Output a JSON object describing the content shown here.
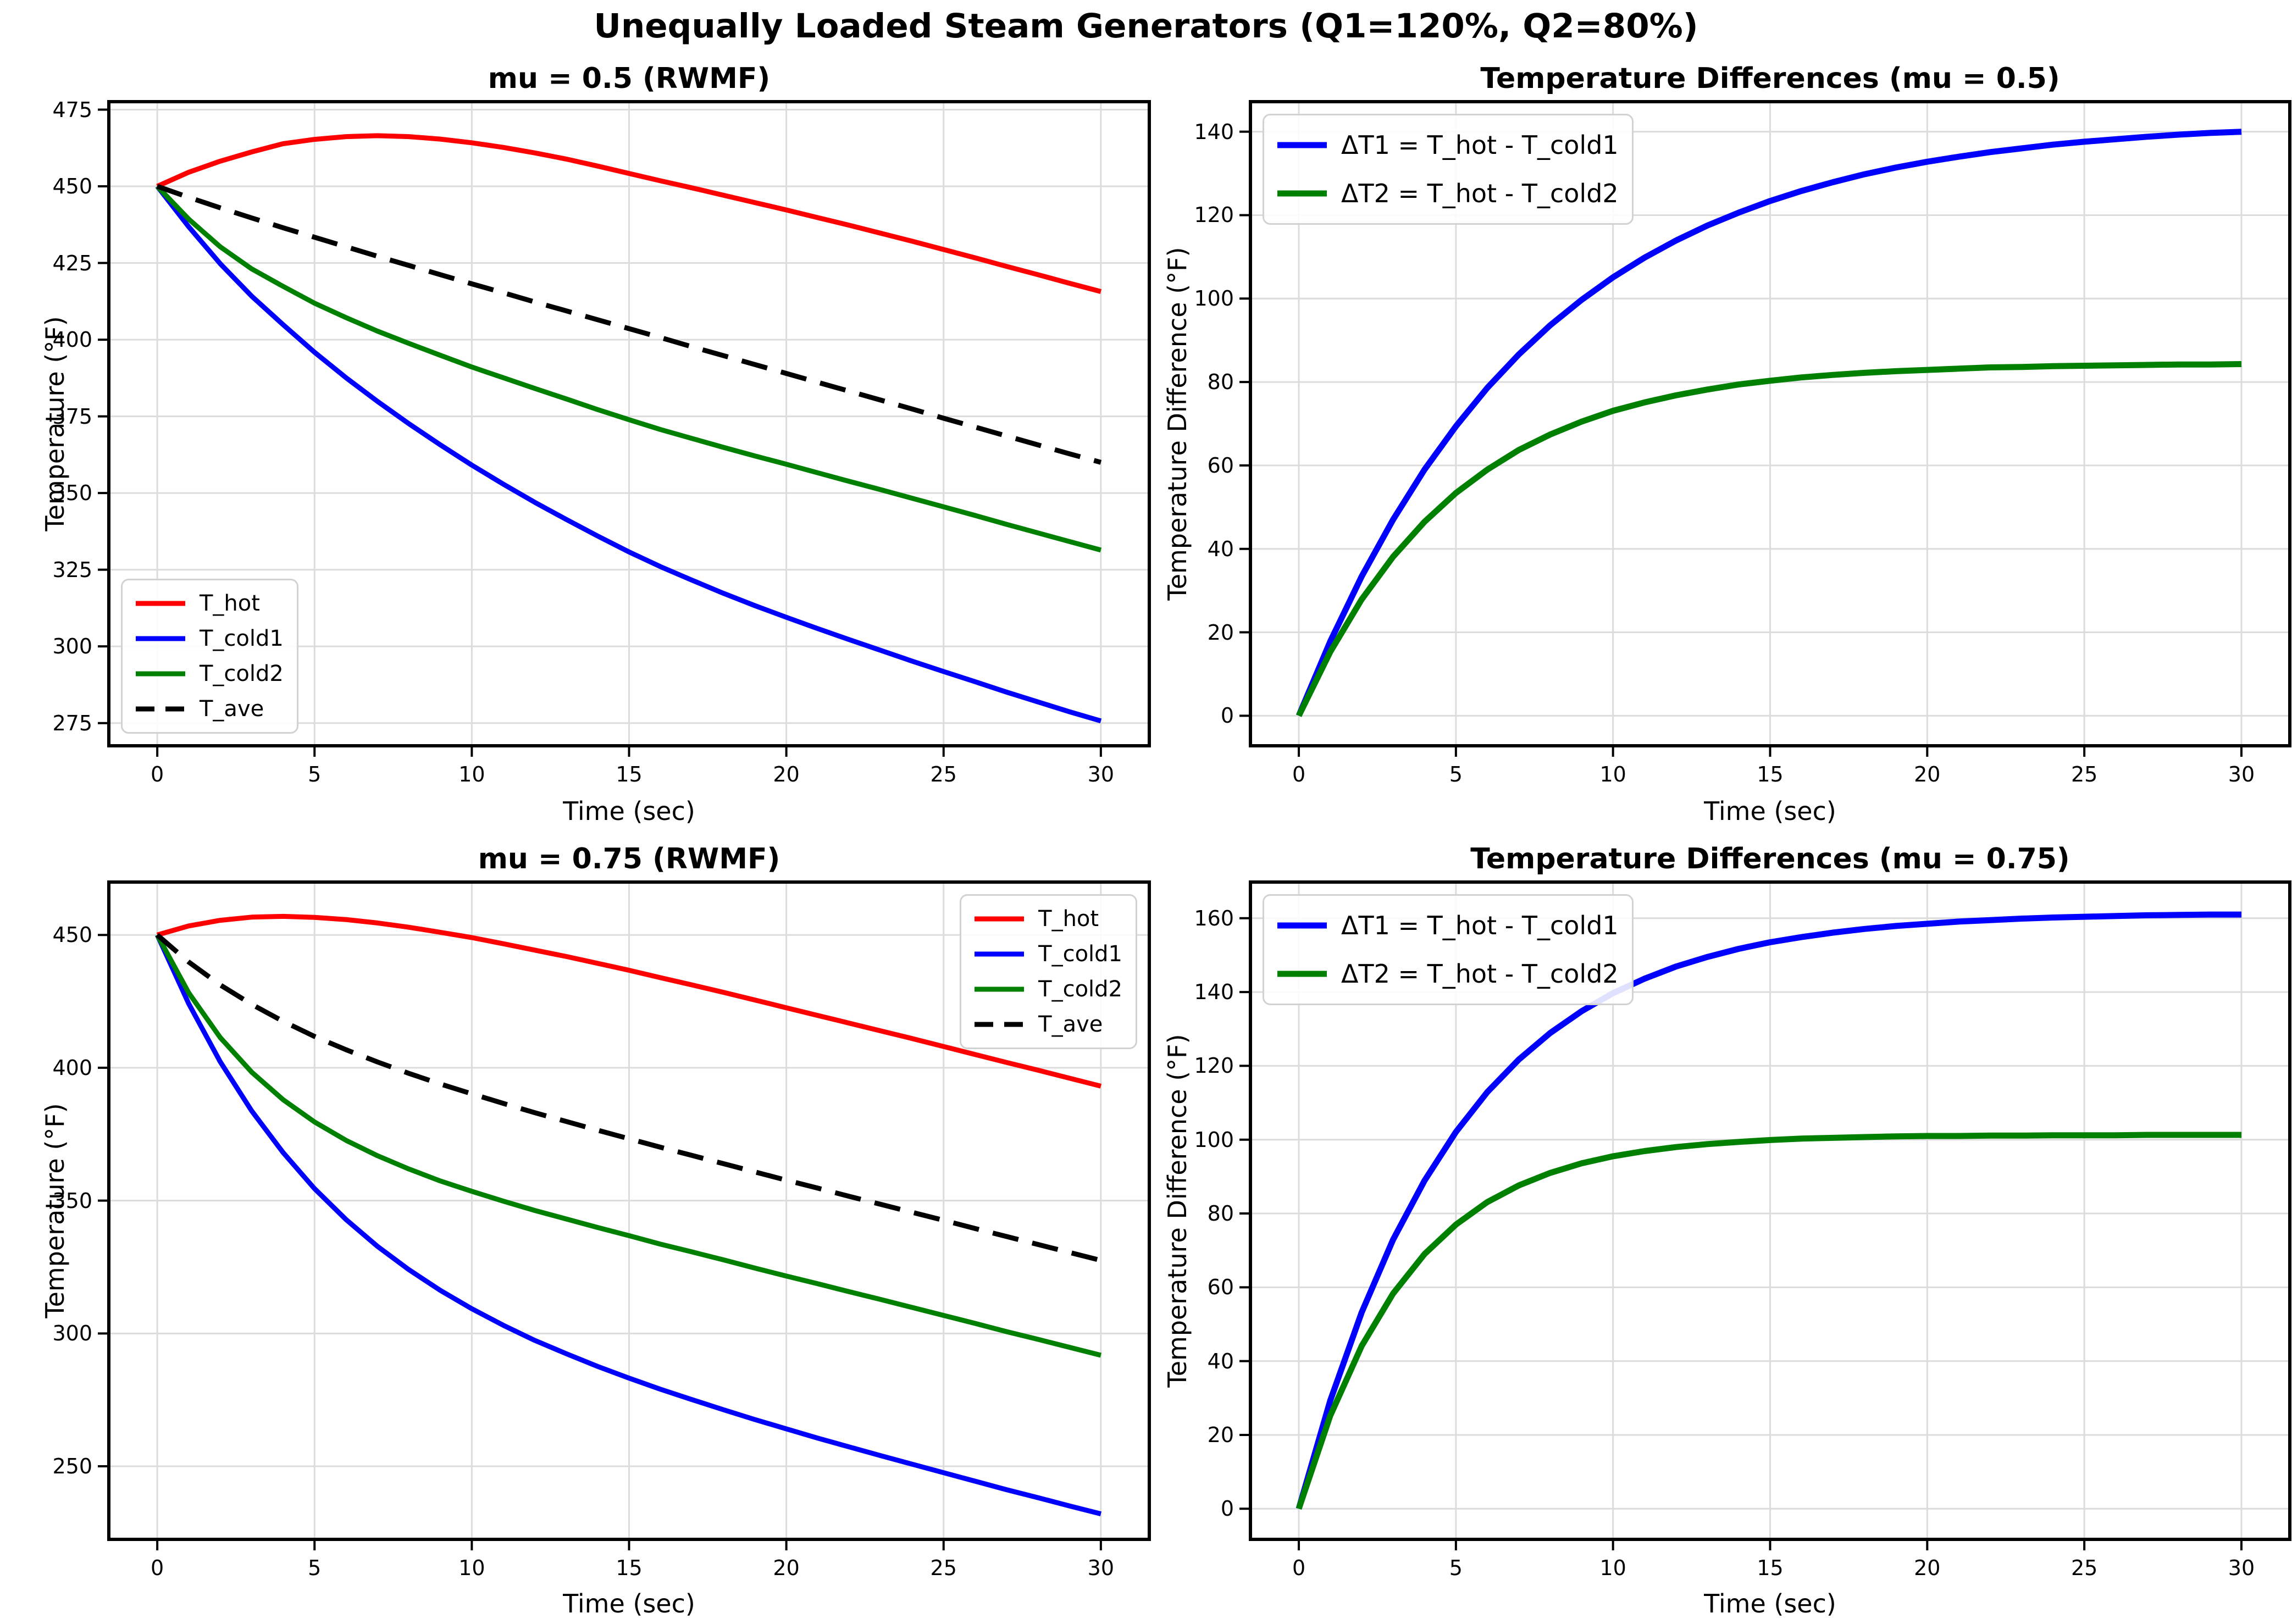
{
  "suptitle": "Unequally Loaded Steam Generators (Q1=120%, Q2=80%)",
  "colors": {
    "hot": "#ff0000",
    "cold1": "#0000ff",
    "cold2": "#008000",
    "ave": "#000000",
    "grid": "#dcdcdc",
    "spine": "#000000",
    "legend_border": "#d2d2d2"
  },
  "chart_data": [
    {
      "type": "line",
      "title": "mu = 0.5 (RWMF)",
      "xlabel": "Time (sec)",
      "ylabel": "Temperature (°F)",
      "xlim": [
        -1.54,
        31.54
      ],
      "ylim": [
        267.6,
        477.6
      ],
      "xticks": [
        0,
        5,
        10,
        15,
        20,
        25,
        30
      ],
      "yticks": [
        275,
        300,
        325,
        350,
        375,
        400,
        425,
        450,
        475
      ],
      "grid": true,
      "legend_loc": "lower-left",
      "x": [
        0,
        1,
        2,
        3,
        4,
        5,
        6,
        7,
        8,
        9,
        10,
        11,
        12,
        13,
        14,
        15,
        16,
        17,
        18,
        19,
        20,
        21,
        22,
        23,
        24,
        25,
        26,
        27,
        28,
        29,
        30
      ],
      "series": [
        {
          "label": "T_hot",
          "color": "#ff0000",
          "dash": false,
          "values": [
            450.0,
            454.6,
            458.2,
            461.2,
            463.9,
            465.3,
            466.2,
            466.5,
            466.2,
            465.4,
            464.2,
            462.7,
            460.9,
            458.9,
            456.6,
            454.2,
            451.8,
            449.5,
            447.1,
            444.7,
            442.3,
            439.8,
            437.3,
            434.7,
            432.1,
            429.4,
            426.7,
            423.9,
            421.2,
            418.4,
            415.7
          ]
        },
        {
          "label": "T_cold1",
          "color": "#0000ff",
          "dash": false,
          "values": [
            450.0,
            436.8,
            424.8,
            414.2,
            404.9,
            395.9,
            387.6,
            379.9,
            372.6,
            365.7,
            359.1,
            352.9,
            347.0,
            341.4,
            336.0,
            330.8,
            326.0,
            321.6,
            317.3,
            313.3,
            309.5,
            305.8,
            302.2,
            298.7,
            295.2,
            291.8,
            288.5,
            285.1,
            281.9,
            278.7,
            275.7
          ]
        },
        {
          "label": "T_cold2",
          "color": "#008000",
          "dash": false,
          "values": [
            450.0,
            439.3,
            430.3,
            423.1,
            417.4,
            411.9,
            407.2,
            402.8,
            398.8,
            394.9,
            391.1,
            387.6,
            384.1,
            380.7,
            377.2,
            373.9,
            370.7,
            367.8,
            364.9,
            362.1,
            359.4,
            356.6,
            353.8,
            351.1,
            348.3,
            345.5,
            342.7,
            339.8,
            337.0,
            334.2,
            331.4
          ]
        },
        {
          "label": "T_ave",
          "color": "#000000",
          "dash": true,
          "values": [
            450.0,
            446.4,
            443.0,
            439.7,
            436.5,
            433.4,
            430.3,
            427.2,
            424.2,
            421.2,
            418.2,
            415.3,
            412.3,
            409.4,
            406.5,
            403.6,
            400.7,
            397.7,
            394.8,
            391.9,
            389.0,
            386.1,
            383.2,
            380.3,
            377.4,
            374.4,
            371.5,
            368.6,
            365.7,
            362.8,
            360.0
          ]
        }
      ]
    },
    {
      "type": "line",
      "title": "Temperature Differences (mu = 0.5)",
      "xlabel": "Time (sec)",
      "ylabel": "Temperature Difference (°F)",
      "xlim": [
        -1.54,
        31.54
      ],
      "ylim": [
        -7.2,
        147.2
      ],
      "xticks": [
        0,
        5,
        10,
        15,
        20,
        25,
        30
      ],
      "yticks": [
        0,
        20,
        40,
        60,
        80,
        100,
        120,
        140
      ],
      "grid": true,
      "legend_loc": "upper-left",
      "x": [
        0,
        1,
        2,
        3,
        4,
        5,
        6,
        7,
        8,
        9,
        10,
        11,
        12,
        13,
        14,
        15,
        16,
        17,
        18,
        19,
        20,
        21,
        22,
        23,
        24,
        25,
        26,
        27,
        28,
        29,
        30
      ],
      "series": [
        {
          "label": "ΔT1 = T_hot - T_cold1",
          "color": "#0000ff",
          "dash": false,
          "values": [
            0,
            17.8,
            33.4,
            47.0,
            59.0,
            69.4,
            78.6,
            86.6,
            93.6,
            99.7,
            105.1,
            109.8,
            113.9,
            117.5,
            120.6,
            123.4,
            125.8,
            127.9,
            129.8,
            131.4,
            132.8,
            134.0,
            135.1,
            136.0,
            136.9,
            137.6,
            138.2,
            138.8,
            139.3,
            139.7,
            140.0
          ]
        },
        {
          "label": "ΔT2 = T_hot - T_cold2",
          "color": "#008000",
          "dash": false,
          "values": [
            0,
            15.3,
            27.9,
            38.1,
            46.5,
            53.4,
            59.0,
            63.7,
            67.4,
            70.5,
            73.1,
            75.1,
            76.8,
            78.2,
            79.4,
            80.3,
            81.1,
            81.7,
            82.2,
            82.6,
            82.9,
            83.2,
            83.5,
            83.6,
            83.8,
            83.9,
            84.0,
            84.1,
            84.2,
            84.2,
            84.3
          ]
        }
      ]
    },
    {
      "type": "line",
      "title": "mu = 0.75 (RWMF)",
      "xlabel": "Time (sec)",
      "ylabel": "Temperature (°F)",
      "xlim": [
        -1.54,
        31.54
      ],
      "ylim": [
        222.5,
        469.9
      ],
      "xticks": [
        0,
        5,
        10,
        15,
        20,
        25,
        30
      ],
      "yticks": [
        250,
        300,
        350,
        400,
        450
      ],
      "grid": true,
      "legend_loc": "upper-right",
      "x": [
        0,
        1,
        2,
        3,
        4,
        5,
        6,
        7,
        8,
        9,
        10,
        11,
        12,
        13,
        14,
        15,
        16,
        17,
        18,
        19,
        20,
        21,
        22,
        23,
        24,
        25,
        26,
        27,
        28,
        29,
        30
      ],
      "series": [
        {
          "label": "T_hot",
          "color": "#ff0000",
          "dash": false,
          "values": [
            450.0,
            453.4,
            455.5,
            456.7,
            457.0,
            456.6,
            455.8,
            454.5,
            452.9,
            451.0,
            449.0,
            446.7,
            444.3,
            441.9,
            439.3,
            436.7,
            433.9,
            431.2,
            428.4,
            425.5,
            422.6,
            419.7,
            416.8,
            413.9,
            411.0,
            408.0,
            405.0,
            402.0,
            399.1,
            396.1,
            393.1
          ]
        },
        {
          "label": "T_cold1",
          "color": "#0000ff",
          "dash": false,
          "values": [
            450.0,
            424.1,
            402.3,
            383.8,
            368.1,
            354.5,
            342.9,
            332.8,
            324.0,
            316.2,
            309.3,
            303.1,
            297.4,
            292.4,
            287.6,
            283.2,
            279.0,
            275.1,
            271.3,
            267.6,
            264.1,
            260.6,
            257.3,
            254.0,
            250.8,
            247.6,
            244.4,
            241.2,
            238.2,
            235.1,
            232.1
          ]
        },
        {
          "label": "T_cold2",
          "color": "#008000",
          "dash": false,
          "values": [
            450.0,
            428.2,
            411.4,
            398.4,
            388.0,
            379.6,
            372.7,
            366.9,
            361.9,
            357.4,
            353.5,
            349.8,
            346.3,
            343.1,
            339.9,
            336.8,
            333.6,
            330.7,
            327.7,
            324.6,
            321.6,
            318.7,
            315.7,
            312.8,
            309.8,
            306.8,
            303.8,
            300.7,
            297.8,
            294.8,
            291.8
          ]
        },
        {
          "label": "T_ave",
          "color": "#000000",
          "dash": true,
          "values": [
            450.0,
            439.8,
            431.2,
            423.9,
            417.5,
            411.8,
            406.8,
            402.2,
            397.9,
            393.9,
            390.2,
            386.6,
            383.1,
            379.8,
            376.5,
            373.3,
            370.1,
            367.0,
            363.9,
            360.8,
            357.7,
            354.7,
            351.6,
            348.6,
            345.6,
            342.6,
            339.5,
            336.5,
            333.5,
            330.5,
            327.5
          ]
        }
      ]
    },
    {
      "type": "line",
      "title": "Temperature Differences (mu = 0.75)",
      "xlabel": "Time (sec)",
      "ylabel": "Temperature Difference (°F)",
      "xlim": [
        -1.54,
        31.54
      ],
      "ylim": [
        -8.3,
        169.8
      ],
      "xticks": [
        0,
        5,
        10,
        15,
        20,
        25,
        30
      ],
      "yticks": [
        0,
        20,
        40,
        60,
        80,
        100,
        120,
        140,
        160
      ],
      "grid": true,
      "legend_loc": "upper-left",
      "x": [
        0,
        1,
        2,
        3,
        4,
        5,
        6,
        7,
        8,
        9,
        10,
        11,
        12,
        13,
        14,
        15,
        16,
        17,
        18,
        19,
        20,
        21,
        22,
        23,
        24,
        25,
        26,
        27,
        28,
        29,
        30
      ],
      "series": [
        {
          "label": "ΔT1 = T_hot - T_cold1",
          "color": "#0000ff",
          "dash": false,
          "values": [
            0,
            29.3,
            53.2,
            72.9,
            88.9,
            102.1,
            112.9,
            121.7,
            128.9,
            134.8,
            139.7,
            143.6,
            146.9,
            149.5,
            151.7,
            153.5,
            154.9,
            156.1,
            157.1,
            157.9,
            158.5,
            159.1,
            159.5,
            159.9,
            160.2,
            160.4,
            160.6,
            160.8,
            160.9,
            161.0,
            161.0
          ]
        },
        {
          "label": "ΔT2 = T_hot - T_cold2",
          "color": "#008000",
          "dash": false,
          "values": [
            0,
            25.2,
            44.1,
            58.3,
            69.0,
            77.0,
            83.1,
            87.6,
            91.0,
            93.6,
            95.5,
            96.9,
            98.0,
            98.8,
            99.4,
            99.9,
            100.3,
            100.5,
            100.7,
            100.9,
            101.0,
            101.0,
            101.1,
            101.1,
            101.2,
            101.2,
            101.2,
            101.3,
            101.3,
            101.3,
            101.3
          ]
        }
      ]
    }
  ]
}
